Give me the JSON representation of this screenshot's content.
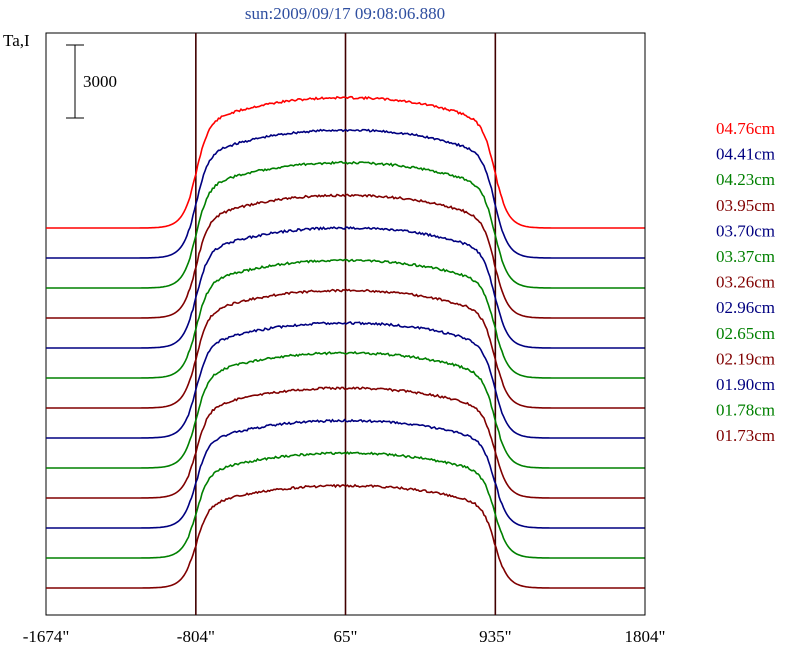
{
  "chart_data": {
    "type": "line",
    "title": "sun:2009/09/17 09:08:06.880",
    "ylabel": "Ta,I",
    "scale_bar_label": "3000",
    "x_tick_labels": [
      "-1674\"",
      "-804\"",
      "65\"",
      "935\"",
      "1804\""
    ],
    "x_ticks": [
      -1674,
      -804,
      65,
      935,
      1804
    ],
    "xlim": [
      -1674,
      1804
    ],
    "vertical_lines": [
      -804,
      65,
      935
    ],
    "limb_positions": [
      -804,
      935
    ],
    "series": [
      {
        "name": "04.76cm",
        "color": "#ff0000",
        "baseline": 1,
        "amplitude": 5100
      },
      {
        "name": "04.41cm",
        "color": "#000080",
        "baseline": 0,
        "amplitude": 5000
      },
      {
        "name": "04.23cm",
        "color": "#008000",
        "baseline": 0,
        "amplitude": 4900
      },
      {
        "name": "03.95cm",
        "color": "#800000",
        "baseline": 0,
        "amplitude": 4800
      },
      {
        "name": "03.70cm",
        "color": "#000080",
        "baseline": 0,
        "amplitude": 4700
      },
      {
        "name": "03.37cm",
        "color": "#008000",
        "baseline": 0,
        "amplitude": 4600
      },
      {
        "name": "03.26cm",
        "color": "#800000",
        "baseline": 0,
        "amplitude": 4600
      },
      {
        "name": "02.96cm",
        "color": "#000080",
        "baseline": 0,
        "amplitude": 4500
      },
      {
        "name": "02.65cm",
        "color": "#008000",
        "baseline": 0,
        "amplitude": 4500
      },
      {
        "name": "02.19cm",
        "color": "#800000",
        "baseline": 0,
        "amplitude": 4300
      },
      {
        "name": "01.90cm",
        "color": "#000080",
        "baseline": 0,
        "amplitude": 4200
      },
      {
        "name": "01.78cm",
        "color": "#008000",
        "baseline": 0,
        "amplitude": 4100
      },
      {
        "name": "01.73cm",
        "color": "#800000",
        "baseline": 0,
        "amplitude": 4000
      }
    ],
    "grid": false,
    "legend_position": "right"
  }
}
